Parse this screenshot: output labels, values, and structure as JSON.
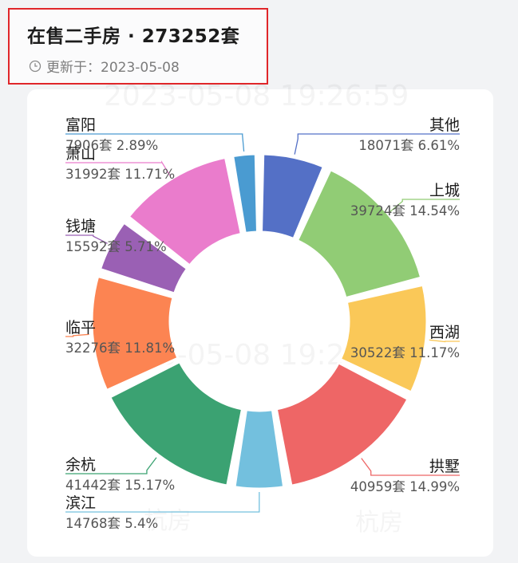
{
  "header": {
    "title": "在售二手房 · 273252套",
    "updated_label": "更新于：2023-05-08"
  },
  "watermark": {
    "time_text": "2023-05-08 19:26:59",
    "brand_text": "杭房"
  },
  "chart_data": {
    "type": "pie",
    "title": "",
    "unit": "套",
    "slices": [
      {
        "name": "其他",
        "value": 18071,
        "percent": "6.61%",
        "color": "#5470c6"
      },
      {
        "name": "上城",
        "value": 39724,
        "percent": "14.54%",
        "color": "#91cc75"
      },
      {
        "name": "西湖",
        "value": 30522,
        "percent": "11.17%",
        "color": "#fac858"
      },
      {
        "name": "拱墅",
        "value": 40959,
        "percent": "14.99%",
        "color": "#ee6666"
      },
      {
        "name": "滨江",
        "value": 14768,
        "percent": "5.4%",
        "color": "#73c0de"
      },
      {
        "name": "余杭",
        "value": 41442,
        "percent": "15.17%",
        "color": "#3ba272"
      },
      {
        "name": "临平",
        "value": 32276,
        "percent": "11.81%",
        "color": "#fc8452"
      },
      {
        "name": "钱塘",
        "value": 15592,
        "percent": "5.71%",
        "color": "#9a60b4"
      },
      {
        "name": "萧山",
        "value": 31992,
        "percent": "11.71%",
        "color": "#ea7ccc"
      },
      {
        "name": "富阳",
        "value": 7906,
        "percent": "2.89%",
        "color": "#4a9bd1"
      }
    ]
  }
}
